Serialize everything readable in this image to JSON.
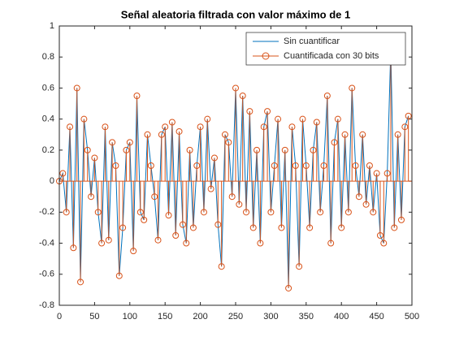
{
  "chart_data": {
    "type": "line",
    "title": "Señal aleatoria filtrada con valor máximo de 1",
    "x": [
      0,
      5,
      10,
      15,
      20,
      25,
      30,
      35,
      40,
      45,
      50,
      55,
      60,
      65,
      70,
      75,
      80,
      85,
      90,
      95,
      100,
      105,
      110,
      115,
      120,
      125,
      130,
      135,
      140,
      145,
      150,
      155,
      160,
      165,
      170,
      175,
      180,
      185,
      190,
      195,
      200,
      205,
      210,
      215,
      220,
      225,
      230,
      235,
      240,
      245,
      250,
      255,
      260,
      265,
      270,
      275,
      280,
      285,
      290,
      295,
      300,
      305,
      310,
      315,
      320,
      325,
      330,
      335,
      340,
      345,
      350,
      355,
      360,
      365,
      370,
      375,
      380,
      385,
      390,
      395,
      400,
      405,
      410,
      415,
      420,
      425,
      430,
      435,
      440,
      445,
      450,
      455,
      460,
      465,
      470,
      475,
      480,
      485,
      490,
      495
    ],
    "series": [
      {
        "name": "Sin cuantificar",
        "type": "line",
        "color": "#0072BD",
        "values": [
          0,
          0.05,
          -0.2,
          0.35,
          -0.43,
          0.6,
          -0.65,
          0.4,
          0.2,
          -0.1,
          0.15,
          -0.2,
          -0.4,
          0.35,
          -0.38,
          0.25,
          0.1,
          -0.61,
          -0.3,
          0.2,
          0.25,
          -0.45,
          0.55,
          -0.2,
          -0.25,
          0.3,
          0.1,
          -0.1,
          -0.38,
          0.3,
          0.35,
          -0.22,
          0.38,
          -0.35,
          0.32,
          -0.28,
          -0.4,
          0.2,
          -0.3,
          0.1,
          0.35,
          -0.2,
          0.4,
          -0.05,
          0.15,
          -0.28,
          -0.55,
          0.3,
          0.25,
          -0.1,
          0.6,
          -0.15,
          0.55,
          -0.2,
          0.45,
          -0.3,
          0.2,
          -0.4,
          0.35,
          0.45,
          -0.2,
          0.1,
          0.4,
          -0.3,
          0.2,
          -0.69,
          0.35,
          0.1,
          -0.55,
          0.4,
          0.1,
          -0.3,
          0.2,
          0.38,
          -0.2,
          0.1,
          0.55,
          -0.4,
          0.25,
          0.4,
          -0.3,
          0.3,
          -0.2,
          0.6,
          0.1,
          -0.1,
          0.3,
          -0.15,
          0.1,
          -0.2,
          0.05,
          -0.35,
          -0.4,
          0.05,
          0.85,
          -0.3,
          0.3,
          -0.25,
          0.35,
          0.42
        ]
      },
      {
        "name": "Cuantificada con 30 bits",
        "type": "stem",
        "color": "#D95319",
        "values": [
          0,
          0.05,
          -0.2,
          0.35,
          -0.43,
          0.6,
          -0.65,
          0.4,
          0.2,
          -0.1,
          0.15,
          -0.2,
          -0.4,
          0.35,
          -0.38,
          0.25,
          0.1,
          -0.61,
          -0.3,
          0.2,
          0.25,
          -0.45,
          0.55,
          -0.2,
          -0.25,
          0.3,
          0.1,
          -0.1,
          -0.38,
          0.3,
          0.35,
          -0.22,
          0.38,
          -0.35,
          0.32,
          -0.28,
          -0.4,
          0.2,
          -0.3,
          0.1,
          0.35,
          -0.2,
          0.4,
          -0.05,
          0.15,
          -0.28,
          -0.55,
          0.3,
          0.25,
          -0.1,
          0.6,
          -0.15,
          0.55,
          -0.2,
          0.45,
          -0.3,
          0.2,
          -0.4,
          0.35,
          0.45,
          -0.2,
          0.1,
          0.4,
          -0.3,
          0.2,
          -0.69,
          0.35,
          0.1,
          -0.55,
          0.4,
          0.1,
          -0.3,
          0.2,
          0.38,
          -0.2,
          0.1,
          0.55,
          -0.4,
          0.25,
          0.4,
          -0.3,
          0.3,
          -0.2,
          0.6,
          0.1,
          -0.1,
          0.3,
          -0.15,
          0.1,
          -0.2,
          0.05,
          -0.35,
          -0.4,
          0.05,
          0.85,
          -0.3,
          0.3,
          -0.25,
          0.35,
          0.42
        ]
      }
    ],
    "xlim": [
      0,
      500
    ],
    "xticks": [
      0,
      50,
      100,
      150,
      200,
      250,
      300,
      350,
      400,
      450,
      500
    ],
    "ylim": [
      -0.8,
      1
    ],
    "yticks": [
      -0.8,
      -0.6,
      -0.4,
      -0.2,
      0,
      0.2,
      0.4,
      0.6,
      0.8,
      1
    ],
    "legend": "upper right",
    "grid": false
  }
}
